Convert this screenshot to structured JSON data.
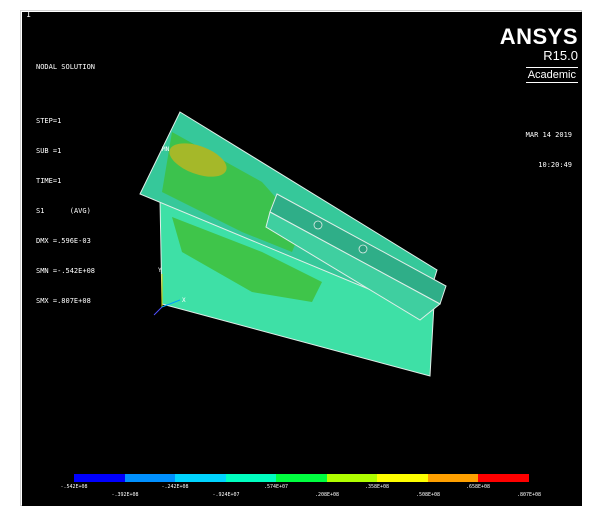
{
  "window_number": "1",
  "solution": {
    "title": "NODAL SOLUTION",
    "step": "STEP=1",
    "sub": "SUB =1",
    "time": "TIME=1",
    "item": "S1",
    "item_option": "(AVG)",
    "dmx": "DMX =.596E-03",
    "smn": "SMN =-.542E+08",
    "smx": "SMX =.807E+08"
  },
  "brand": {
    "name": "ANSYS",
    "release": "R15.0",
    "license": "Academic"
  },
  "datetime": {
    "date": "MAR 14 2019",
    "time": "10:20:49"
  },
  "model": {
    "label_mn": "MN",
    "triad_x": "X",
    "triad_y": "Y",
    "colors": {
      "plate_main": "#36c89a",
      "plate_lower": "#3ee0a6",
      "zone_green": "#3fc03a",
      "zone_hot": "#a5b829",
      "slot": "#2fae88",
      "edge": "#dfeee8"
    }
  },
  "legend": {
    "colors": [
      "#0000ff",
      "#0090ff",
      "#00d4ff",
      "#00ffc0",
      "#00ff40",
      "#b0ff00",
      "#ffff00",
      "#ffa000",
      "#ff0000"
    ],
    "labels_top": [
      "-.542E+08",
      "-.242E+08",
      ".574E+07",
      ".358E+08",
      ".658E+08"
    ],
    "labels_bottom": [
      "-.392E+08",
      "-.924E+07",
      ".208E+08",
      ".508E+08",
      ".807E+08"
    ]
  }
}
